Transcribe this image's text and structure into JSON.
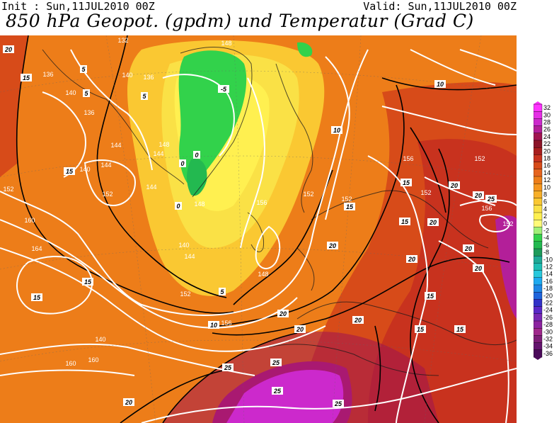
{
  "header": {
    "init": "Init : Sun,11JUL2010 00Z",
    "valid": "Valid: Sun,11JUL2010 00Z",
    "title": "850 hPa Geopot. (gpdm) und Temperatur (Grad C)"
  },
  "legend": {
    "values": [
      "32",
      "30",
      "28",
      "26",
      "24",
      "22",
      "20",
      "18",
      "16",
      "14",
      "12",
      "10",
      "8",
      "6",
      "4",
      "2",
      "0",
      "-2",
      "-4",
      "-6",
      "-8",
      "-10",
      "-12",
      "-14",
      "-16",
      "-18",
      "-20",
      "-22",
      "-24",
      "-26",
      "-28",
      "-30",
      "-32",
      "-34",
      "-36"
    ],
    "colors": [
      "#ff33ff",
      "#e62ee6",
      "#cc29cc",
      "#b31f99",
      "#a01450",
      "#8c1428",
      "#a81e1e",
      "#c8321e",
      "#d74b19",
      "#e6641e",
      "#ed7d19",
      "#f5961e",
      "#f7af28",
      "#fac832",
      "#fae146",
      "#fff050",
      "#fffa78",
      "#a0f078",
      "#32d24b",
      "#23b950",
      "#1e9b5a",
      "#1eaa96",
      "#1ebeb4",
      "#28c8dc",
      "#1eaaf0",
      "#1e87e6",
      "#1e64dc",
      "#3232c8",
      "#5a28c8",
      "#7828b4",
      "#8c23a0",
      "#a0288c",
      "#7d1e78",
      "#64146e",
      "#4b0a5a"
    ]
  },
  "map": {
    "geopotential_labels": [
      "136",
      "140",
      "136",
      "132",
      "148",
      "140",
      "144",
      "136",
      "148",
      "144",
      "152",
      "144",
      "148",
      "156",
      "140",
      "144",
      "152",
      "160",
      "140",
      "140",
      "144",
      "148",
      "164",
      "152",
      "160",
      "160",
      "156",
      "152",
      "152",
      "152",
      "152",
      "156",
      "156",
      "152"
    ],
    "temperature_labels": [
      "20",
      "15",
      "5",
      "5",
      "5",
      "-5",
      "0",
      "0",
      "0",
      "10",
      "10",
      "15",
      "15",
      "15",
      "15",
      "15",
      "20",
      "20",
      "20",
      "20",
      "20",
      "20",
      "25",
      "25",
      "25",
      "25",
      "25",
      "20",
      "15",
      "15",
      "15",
      "10",
      "5",
      "20",
      "20",
      "20",
      "20",
      "15"
    ]
  }
}
